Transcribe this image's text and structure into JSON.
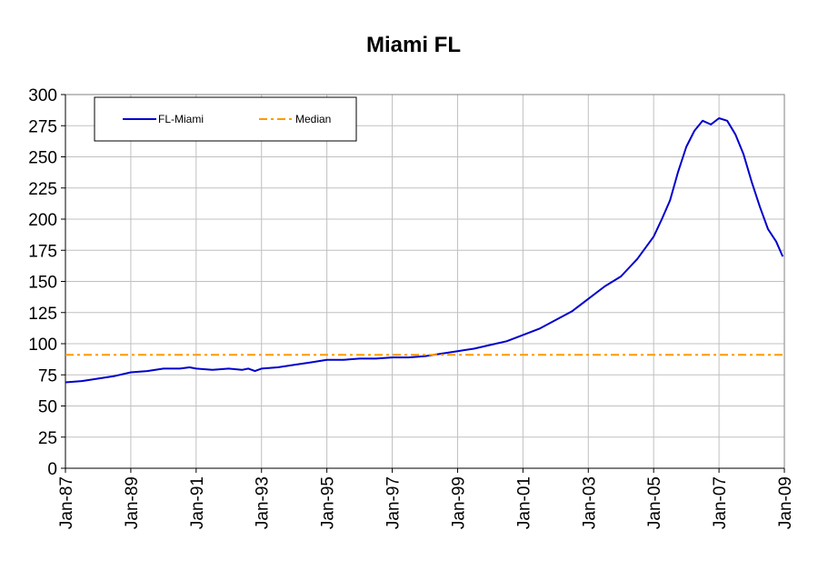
{
  "chart_data": {
    "type": "line",
    "title": "Miami FL",
    "xlabel": "",
    "ylabel": "",
    "ylim": [
      0,
      300
    ],
    "yticks": [
      0,
      25,
      50,
      75,
      100,
      125,
      150,
      175,
      200,
      225,
      250,
      275,
      300
    ],
    "xrange": [
      1987.0,
      2009.0
    ],
    "xtick_labels": [
      "Jan-87",
      "Jan-89",
      "Jan-91",
      "Jan-93",
      "Jan-95",
      "Jan-97",
      "Jan-99",
      "Jan-01",
      "Jan-03",
      "Jan-05",
      "Jan-07",
      "Jan-09"
    ],
    "xtick_years": [
      1987,
      1989,
      1991,
      1993,
      1995,
      1997,
      1999,
      2001,
      2003,
      2005,
      2007,
      2009
    ],
    "grid": true,
    "legend_position": "top-left",
    "series": [
      {
        "name": "FL-Miami",
        "color": "#0000cc",
        "style": "solid",
        "x": [
          1987.0,
          1987.5,
          1988.0,
          1988.5,
          1989.0,
          1989.5,
          1990.0,
          1990.5,
          1990.8,
          1991.0,
          1991.5,
          1992.0,
          1992.4,
          1992.6,
          1992.8,
          1993.0,
          1993.5,
          1994.0,
          1994.5,
          1995.0,
          1995.5,
          1996.0,
          1996.5,
          1997.0,
          1997.5,
          1998.0,
          1998.5,
          1999.0,
          1999.5,
          2000.0,
          2000.5,
          2001.0,
          2001.5,
          2002.0,
          2002.5,
          2003.0,
          2003.5,
          2004.0,
          2004.5,
          2005.0,
          2005.25,
          2005.5,
          2005.75,
          2006.0,
          2006.25,
          2006.5,
          2006.75,
          2007.0,
          2007.25,
          2007.5,
          2007.75,
          2008.0,
          2008.25,
          2008.5,
          2008.75,
          2008.95
        ],
        "values": [
          69,
          70,
          72,
          74,
          77,
          78,
          80,
          80,
          81,
          80,
          79,
          80,
          79,
          80,
          78,
          80,
          81,
          83,
          85,
          87,
          87,
          88,
          88,
          89,
          89,
          90,
          92,
          94,
          96,
          99,
          102,
          107,
          112,
          119,
          126,
          136,
          146,
          154,
          168,
          186,
          200,
          215,
          238,
          258,
          271,
          279,
          276,
          281,
          279,
          268,
          252,
          230,
          210,
          192,
          182,
          170
        ]
      },
      {
        "name": "Median",
        "color": "#ff9900",
        "style": "dash-dot",
        "x": [
          1987.0,
          2009.0
        ],
        "values": [
          91,
          91
        ]
      }
    ]
  }
}
